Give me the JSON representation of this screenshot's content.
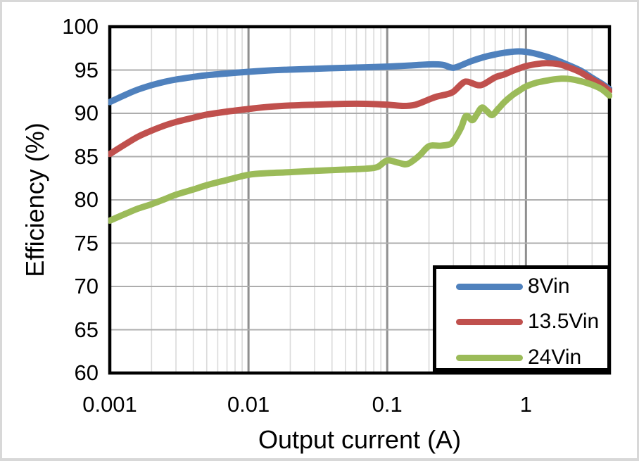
{
  "figure": {
    "background": "#FFFFFF",
    "frame_border_color": "#D8D8D8"
  },
  "chart_data": {
    "type": "line",
    "title": "",
    "xlabel": "Output current (A)",
    "ylabel": "Efficiency (%)",
    "x_scale": "log",
    "xlim": [
      0.001,
      4
    ],
    "ylim": [
      60,
      100
    ],
    "x_ticks": [
      {
        "value": 0.001,
        "label": "0.001"
      },
      {
        "value": 0.01,
        "label": "0.01"
      },
      {
        "value": 0.1,
        "label": "0.1"
      },
      {
        "value": 1,
        "label": "1"
      }
    ],
    "y_ticks": [
      {
        "value": 100,
        "label": "100"
      },
      {
        "value": 95,
        "label": "95"
      },
      {
        "value": 90,
        "label": "90"
      },
      {
        "value": 85,
        "label": "85"
      },
      {
        "value": 80,
        "label": "80"
      },
      {
        "value": 75,
        "label": "75"
      },
      {
        "value": 70,
        "label": "70"
      },
      {
        "value": 65,
        "label": "65"
      },
      {
        "value": 60,
        "label": "60"
      }
    ],
    "grid": {
      "show": true,
      "horizontal_color": "#ADADAD",
      "major_vertical_color": "#8F8F8F",
      "minor_vertical_color": "#DADADA",
      "axis_border_color": "#000000"
    },
    "legend": {
      "position": "bottom-right",
      "border_color": "#000000",
      "entries": [
        {
          "name": "8Vin",
          "color": "#4F81BD"
        },
        {
          "name": "13.5Vin",
          "color": "#C0504D"
        },
        {
          "name": "24Vin",
          "color": "#9BBB59"
        }
      ]
    },
    "series": [
      {
        "name": "8Vin",
        "color": "#4F81BD",
        "points": [
          [
            0.001,
            91.3
          ],
          [
            0.0013,
            92.15
          ],
          [
            0.0016,
            92.75
          ],
          [
            0.002,
            93.25
          ],
          [
            0.0025,
            93.65
          ],
          [
            0.003,
            93.9
          ],
          [
            0.004,
            94.2
          ],
          [
            0.005,
            94.4
          ],
          [
            0.007,
            94.6
          ],
          [
            0.01,
            94.8
          ],
          [
            0.014,
            94.95
          ],
          [
            0.02,
            95.05
          ],
          [
            0.03,
            95.15
          ],
          [
            0.05,
            95.25
          ],
          [
            0.07,
            95.32
          ],
          [
            0.1,
            95.4
          ],
          [
            0.14,
            95.5
          ],
          [
            0.2,
            95.65
          ],
          [
            0.25,
            95.6
          ],
          [
            0.28,
            95.35
          ],
          [
            0.3,
            95.25
          ],
          [
            0.33,
            95.45
          ],
          [
            0.4,
            96.0
          ],
          [
            0.5,
            96.5
          ],
          [
            0.6,
            96.8
          ],
          [
            0.7,
            97.0
          ],
          [
            0.85,
            97.15
          ],
          [
            1.0,
            97.1
          ],
          [
            1.2,
            96.85
          ],
          [
            1.5,
            96.4
          ],
          [
            2.0,
            95.6
          ],
          [
            2.5,
            94.9
          ],
          [
            3.0,
            94.1
          ],
          [
            3.5,
            93.45
          ],
          [
            4.0,
            92.8
          ]
        ]
      },
      {
        "name": "13.5Vin",
        "color": "#C0504D",
        "points": [
          [
            0.001,
            85.3
          ],
          [
            0.0013,
            86.45
          ],
          [
            0.0016,
            87.3
          ],
          [
            0.002,
            88.0
          ],
          [
            0.0025,
            88.6
          ],
          [
            0.003,
            89.0
          ],
          [
            0.004,
            89.5
          ],
          [
            0.005,
            89.85
          ],
          [
            0.007,
            90.2
          ],
          [
            0.01,
            90.5
          ],
          [
            0.014,
            90.75
          ],
          [
            0.02,
            90.9
          ],
          [
            0.03,
            91.0
          ],
          [
            0.05,
            91.1
          ],
          [
            0.07,
            91.1
          ],
          [
            0.1,
            91.0
          ],
          [
            0.13,
            90.85
          ],
          [
            0.16,
            91.0
          ],
          [
            0.2,
            91.6
          ],
          [
            0.23,
            91.95
          ],
          [
            0.27,
            92.2
          ],
          [
            0.3,
            92.5
          ],
          [
            0.35,
            93.5
          ],
          [
            0.38,
            93.65
          ],
          [
            0.45,
            93.25
          ],
          [
            0.5,
            93.4
          ],
          [
            0.6,
            94.15
          ],
          [
            0.7,
            94.5
          ],
          [
            0.8,
            94.9
          ],
          [
            0.9,
            95.2
          ],
          [
            1.0,
            95.45
          ],
          [
            1.2,
            95.7
          ],
          [
            1.4,
            95.8
          ],
          [
            1.7,
            95.7
          ],
          [
            2.0,
            95.35
          ],
          [
            2.5,
            94.7
          ],
          [
            3.0,
            93.9
          ],
          [
            3.5,
            93.3
          ],
          [
            4.0,
            92.6
          ]
        ]
      },
      {
        "name": "24Vin",
        "color": "#9BBB59",
        "points": [
          [
            0.001,
            77.6
          ],
          [
            0.0013,
            78.4
          ],
          [
            0.0016,
            79.0
          ],
          [
            0.002,
            79.5
          ],
          [
            0.0025,
            80.1
          ],
          [
            0.003,
            80.6
          ],
          [
            0.004,
            81.2
          ],
          [
            0.005,
            81.7
          ],
          [
            0.007,
            82.3
          ],
          [
            0.01,
            82.9
          ],
          [
            0.014,
            83.1
          ],
          [
            0.02,
            83.2
          ],
          [
            0.03,
            83.35
          ],
          [
            0.05,
            83.5
          ],
          [
            0.07,
            83.6
          ],
          [
            0.085,
            83.8
          ],
          [
            0.1,
            84.55
          ],
          [
            0.12,
            84.3
          ],
          [
            0.14,
            84.15
          ],
          [
            0.17,
            85.1
          ],
          [
            0.2,
            86.2
          ],
          [
            0.24,
            86.25
          ],
          [
            0.28,
            86.4
          ],
          [
            0.3,
            86.8
          ],
          [
            0.34,
            88.3
          ],
          [
            0.37,
            89.7
          ],
          [
            0.41,
            89.2
          ],
          [
            0.44,
            89.8
          ],
          [
            0.48,
            90.65
          ],
          [
            0.52,
            90.3
          ],
          [
            0.57,
            89.8
          ],
          [
            0.63,
            90.5
          ],
          [
            0.7,
            91.3
          ],
          [
            0.8,
            92.1
          ],
          [
            0.9,
            92.65
          ],
          [
            1.0,
            93.1
          ],
          [
            1.2,
            93.55
          ],
          [
            1.5,
            93.85
          ],
          [
            1.8,
            94.0
          ],
          [
            2.1,
            93.95
          ],
          [
            2.5,
            93.7
          ],
          [
            3.0,
            93.3
          ],
          [
            3.5,
            92.8
          ],
          [
            4.0,
            92.05
          ]
        ]
      }
    ]
  }
}
